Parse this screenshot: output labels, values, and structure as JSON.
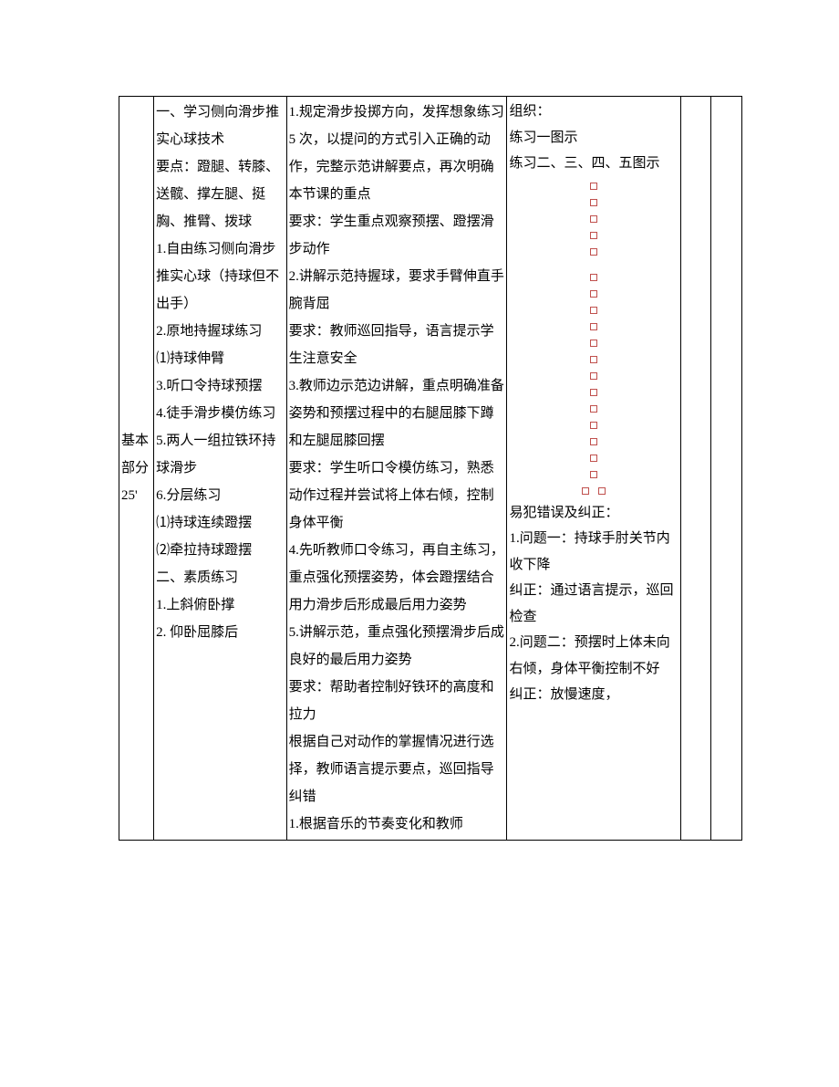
{
  "section": {
    "name_line1": "基本",
    "name_line2": "部分",
    "time": "25'"
  },
  "content": "一、学习侧向滑步推实心球技术\n要点：蹬腿、转膝、送髋、撑左腿、挺胸、推臂、拨球\n1.自由练习侧向滑步推实心球（持球但不出手）\n2.原地持握球练习\n⑴持球伸臂\n3.听口令持球预摆\n4.徒手滑步模仿练习\n5.两人一组拉铁环持球滑步\n6.分层练习\n⑴持球连续蹬摆\n⑵牵拉持球蹬摆\n二、素质练习\n1.上斜俯卧撑\n2. 仰卧屈膝后",
  "method": "1.规定滑步投掷方向，发挥想象练习 5 次，以提问的方式引入正确的动作，完整示范讲解要点，再次明确本节课的重点\n要求：学生重点观察预摆、蹬摆滑步动作\n2.讲解示范持握球，要求手臂伸直手腕背屈\n要求：教师巡回指导，语言提示学生注意安全\n3.教师边示范边讲解，重点明确准备姿势和预摆过程中的右腿屈膝下蹲和左腿屈膝回摆\n要求：学生听口令模仿练习，熟悉动作过程并尝试将上体右倾，控制身体平衡\n4.先听教师口令练习，再自主练习，重点强化预摆姿势，体会蹬摆结合用力滑步后形成最后用力姿势\n5.讲解示范，重点强化预摆滑步后成良好的最后用力姿势\n要求：帮助者控制好铁环的高度和拉力\n根据自己对动作的掌握情况进行选择，教师语言提示要点，巡回指导纠错\n1.根据音乐的节奏变化和教师",
  "org": {
    "title": "组织：",
    "ex1": "练习一图示",
    "ex2": "练习二、三、四、五图示",
    "errors_title": "易犯错误及纠正：",
    "p1": "1.问题一：持球手肘关节内收下降",
    "c1": "纠正：通过语言提示，巡回检查",
    "p2": "2.问题二：预摆时上体未向右倾，身体平衡控制不好",
    "c2": "纠正：放慢速度，"
  },
  "dot_color": "#c0504d"
}
